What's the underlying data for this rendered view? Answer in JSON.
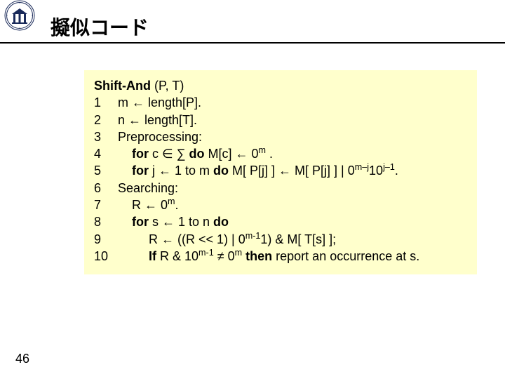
{
  "slide": {
    "title": "擬似コード",
    "page_number": "46",
    "background": "#ffffff",
    "title_fontsize": 28,
    "codebox_background": "#ffffcc",
    "codebox_fontsize": 18
  },
  "logo": {
    "outer_ring_color": "#1a2a5a",
    "inner_color": "#ffffff"
  },
  "code": {
    "header_bold": "Shift-And",
    "header_args": " (P, T)",
    "lines": [
      {
        "n": "1",
        "indent": 1,
        "html": "m ← length[P]."
      },
      {
        "n": "2",
        "indent": 1,
        "html": "n ← length[T]."
      },
      {
        "n": "3",
        "indent": 1,
        "html": "Preprocessing:"
      },
      {
        "n": "4",
        "indent": 2,
        "html": "<b>for</b> c ∈ ∑ <b>do</b> M[c] ← 0<sup>m</sup> ."
      },
      {
        "n": "5",
        "indent": 2,
        "html": "<b>for</b> j ← 1 to m <b>do</b> M[ P[j] ] ← M[ P[j] ] | 0<sup>m–j</sup>10<sup>j–1</sup>."
      },
      {
        "n": "6",
        "indent": 1,
        "html": "Searching:"
      },
      {
        "n": "7",
        "indent": 2,
        "html": "R ← 0<sup>m</sup>."
      },
      {
        "n": "8",
        "indent": 2,
        "html": "<b>for</b> s ← 1 to n <b>do</b>"
      },
      {
        "n": "9",
        "indent": 3,
        "html": "R ← ((R &lt;&lt; 1) | 0<sup>m-1</sup>1) &amp; M[ T[s] ];"
      },
      {
        "n": "10",
        "indent": 3,
        "html": "<b>If</b> R &amp; 10<sup>m-1</sup> ≠ 0<sup>m</sup> <b>then</b> report an occurrence at s."
      }
    ]
  }
}
